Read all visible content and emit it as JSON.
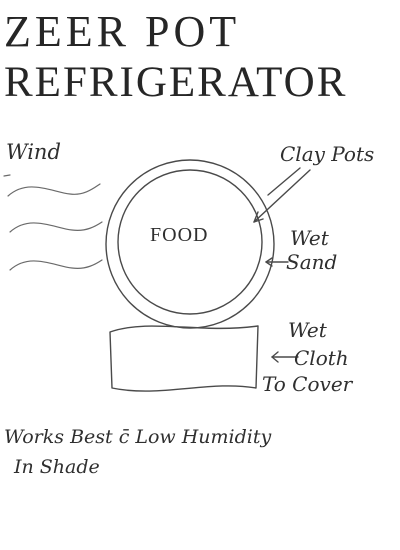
{
  "title": {
    "line1": "ZEER POT",
    "line2": "REFRIGERATOR"
  },
  "labels": {
    "wind": "Wind",
    "clay_pots": "Clay Pots",
    "food": "FOOD",
    "wet_sand_1": "Wet",
    "wet_sand_2": "Sand",
    "wet_cloth_1": "Wet",
    "wet_cloth_2": "Cloth",
    "wet_cloth_3": "To Cover"
  },
  "notes": {
    "line1": "Works Best c̄ Low Humidity",
    "line2": "In Shade"
  },
  "icons": {
    "wind": "wavy-lines",
    "pots": "concentric-circles",
    "cloth": "wavy-rectangle",
    "arrows": "hand-drawn-arrow"
  },
  "colors": {
    "ink": "#2a2a2a",
    "background": "#ffffff"
  }
}
